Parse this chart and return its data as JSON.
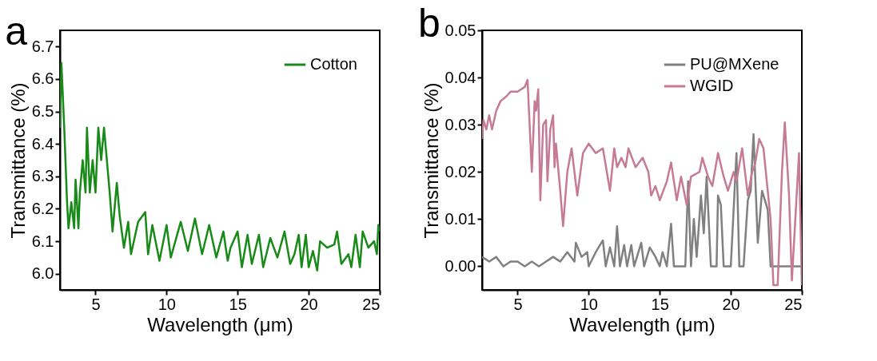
{
  "chart_data": [
    {
      "type": "line",
      "title": "a",
      "xlabel": "Wavelength (μm)",
      "ylabel": "Transmittance (%)",
      "legend": "top right",
      "grid": false,
      "xlim": [
        2.5,
        25
      ],
      "xticks": [
        5,
        10,
        15,
        20,
        25
      ],
      "ylim": [
        5.95,
        6.75
      ],
      "yticks": [
        {
          "value": 6.0,
          "label": "6.0"
        },
        {
          "value": 6.1,
          "label": "6.1"
        },
        {
          "value": 6.2,
          "label": "6.2"
        },
        {
          "value": 6.3,
          "label": "6.3"
        },
        {
          "value": 6.4,
          "label": "6.4"
        },
        {
          "value": 6.5,
          "label": "6.5"
        },
        {
          "value": 6.6,
          "label": "6.6"
        },
        {
          "value": 6.7,
          "label": "6.7"
        }
      ],
      "series": [
        {
          "name": "Cotton",
          "color": "#178a17",
          "x": [
            2.5,
            2.6,
            2.7,
            2.8,
            3.0,
            3.1,
            3.3,
            3.5,
            3.6,
            3.8,
            3.9,
            4.1,
            4.3,
            4.4,
            4.6,
            4.8,
            5.0,
            5.2,
            5.4,
            5.6,
            5.8,
            6.0,
            6.2,
            6.5,
            6.7,
            7.0,
            7.3,
            7.5,
            8.0,
            8.5,
            8.7,
            9.0,
            9.5,
            10.0,
            10.3,
            11,
            11.5,
            12,
            12.5,
            13,
            13.5,
            14,
            14.3,
            14.5,
            15,
            15.3,
            15.7,
            16,
            16.5,
            16.8,
            17.3,
            17.8,
            18.3,
            18.7,
            19,
            19.3,
            19.5,
            19.8,
            20,
            20.3,
            20.6,
            20.8,
            21.3,
            21.8,
            22,
            22.3,
            22.8,
            23,
            23.3,
            23.6,
            23.8,
            24.2,
            24.6,
            24.8,
            24.9,
            25
          ],
          "values": [
            6.45,
            6.65,
            6.55,
            6.45,
            6.22,
            6.14,
            6.22,
            6.14,
            6.29,
            6.14,
            6.25,
            6.35,
            6.25,
            6.45,
            6.25,
            6.35,
            6.25,
            6.45,
            6.35,
            6.45,
            6.35,
            6.25,
            6.13,
            6.28,
            6.18,
            6.08,
            6.16,
            6.06,
            6.16,
            6.19,
            6.06,
            6.15,
            6.04,
            6.15,
            6.05,
            6.16,
            6.07,
            6.17,
            6.06,
            6.15,
            6.05,
            6.13,
            6.04,
            6.08,
            6.13,
            6.02,
            6.12,
            6.03,
            6.12,
            6.02,
            6.11,
            6.05,
            6.13,
            6.03,
            6.06,
            6.12,
            6.02,
            6.12,
            6.02,
            6.07,
            6.01,
            6.1,
            6.08,
            6.09,
            6.13,
            6.03,
            6.06,
            6.02,
            6.12,
            6.02,
            6.13,
            6.08,
            6.1,
            6.06,
            6.15,
            6.13
          ]
        }
      ]
    },
    {
      "type": "line",
      "title": "b",
      "xlabel": "Wavelength (μm)",
      "ylabel": "Transmittance (%)",
      "legend": "top right",
      "grid": false,
      "xlim": [
        2.5,
        25
      ],
      "xticks": [
        5,
        10,
        15,
        20,
        25
      ],
      "ylim": [
        -0.005,
        0.05
      ],
      "yticks": [
        {
          "value": 0,
          "label": "0.00"
        },
        {
          "value": 0.01,
          "label": "0.01"
        },
        {
          "value": 0.02,
          "label": "0.02"
        },
        {
          "value": 0.03,
          "label": "0.03"
        },
        {
          "value": 0.04,
          "label": "0.04"
        },
        {
          "value": 0.05,
          "label": "0.05"
        }
      ],
      "series": [
        {
          "name": "PU@MXene",
          "color": "#808080",
          "x": [
            2.5,
            3,
            3.5,
            4,
            4.5,
            5,
            5.5,
            6,
            6.5,
            7,
            7.5,
            8,
            8.5,
            9.0,
            9.1,
            9.5,
            9.9,
            10,
            10.5,
            11,
            11.2,
            11.5,
            11.8,
            12,
            12.2,
            12.5,
            12.7,
            13,
            13.2,
            13.7,
            13.9,
            14.3,
            14.7,
            15,
            15.2,
            15.5,
            15.8,
            16.0,
            16.8,
            17.0,
            17.2,
            17.4,
            17.6,
            17.9,
            18.1,
            18.3,
            18.6,
            19.0,
            19.1,
            19.3,
            19.5,
            20.0,
            20.4,
            20.6,
            20.9,
            21.2,
            21.4,
            21.6,
            21.9,
            22.2,
            22.6,
            22.8,
            25
          ],
          "values": [
            0.002,
            0.001,
            0.002,
            0,
            0.001,
            0.001,
            0,
            0.001,
            0,
            0.001,
            0.002,
            0.001,
            0.003,
            0.001,
            0.005,
            0.002,
            0.003,
            0,
            0.003,
            0.0055,
            0,
            0.004,
            0,
            0.0085,
            0,
            0.0045,
            0,
            0.0045,
            0,
            0.005,
            0,
            0.004,
            0.002,
            0,
            0.003,
            0,
            0.009,
            0,
            0,
            0.018,
            0,
            0.01,
            0.002,
            0.015,
            0.007,
            0.019,
            0,
            0,
            0.015,
            0.013,
            0,
            0,
            0.024,
            0,
            0,
            0.014,
            0.016,
            0.028,
            0.005,
            0.016,
            0.012,
            0,
            0
          ]
        },
        {
          "name": "WGID",
          "color": "#c67a95",
          "x": [
            2.5,
            2.6,
            2.8,
            3.0,
            3.2,
            3.5,
            3.8,
            4.2,
            4.5,
            5,
            5.5,
            5.7,
            5.8,
            6.0,
            6.2,
            6.3,
            6.45,
            6.6,
            6.8,
            7.0,
            7.1,
            7.3,
            7.5,
            7.6,
            7.7,
            8.0,
            8.2,
            8.5,
            8.8,
            9.2,
            9.6,
            10.0,
            10.5,
            11,
            11.5,
            11.8,
            12,
            12.3,
            12.6,
            12.8,
            13.3,
            13.8,
            14.2,
            14.4,
            14.7,
            15,
            15.5,
            15.8,
            16.2,
            16.5,
            16.9,
            17.2,
            17.8,
            18,
            18.4,
            18.7,
            19.1,
            19.5,
            19.8,
            20.2,
            20.4,
            20.8,
            21.2,
            21.5,
            21.7,
            22.0,
            22.3,
            22.8,
            23.0,
            23.3,
            23.6,
            23.8,
            24.1,
            24.3,
            24.8,
            25
          ],
          "values": [
            0.027,
            0.031,
            0.029,
            0.032,
            0.029,
            0.033,
            0.035,
            0.036,
            0.037,
            0.037,
            0.038,
            0.0395,
            0.033,
            0.02,
            0.035,
            0.033,
            0.0375,
            0.014,
            0.03,
            0.031,
            0.018,
            0.029,
            0.032,
            0.021,
            0.026,
            0.016,
            0.0085,
            0.02,
            0.025,
            0.015,
            0.024,
            0.026,
            0.024,
            0.025,
            0.016,
            0.025,
            0.021,
            0.023,
            0.021,
            0.025,
            0.021,
            0.023,
            0.02,
            0.015,
            0.017,
            0.014,
            0.018,
            0.022,
            0.014,
            0.019,
            0.013,
            0.019,
            0.02,
            0.023,
            0.019,
            0.017,
            0.024,
            0.019,
            0.016,
            0.02,
            0.018,
            0.025,
            0.015,
            0.02,
            0.0215,
            0.027,
            0.025,
            0.01,
            -0.004,
            -0.004,
            0.02,
            0.0305,
            0.015,
            -0.003,
            0.024,
            -0.004
          ]
        }
      ]
    }
  ]
}
